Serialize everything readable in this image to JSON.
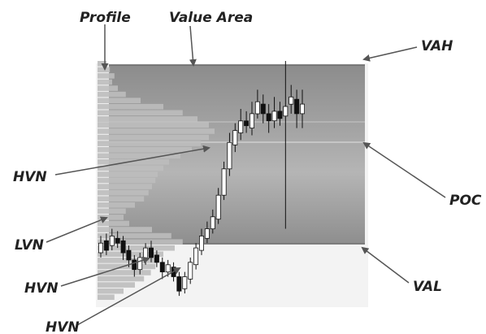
{
  "labels": {
    "profile": "Profile",
    "value_area": "Value Area",
    "vah": "VAH",
    "poc": "POC",
    "val": "VAL",
    "hvn_upper": "HVN",
    "lvn": "LVN",
    "hvn_middle": "HVN",
    "hvn_lower": "HVN"
  },
  "colors": {
    "value_area_fill": "#8a8a8a",
    "profile_bar": "#bdbdbd",
    "candle_bull": "#ffffff",
    "candle_bear": "#111111",
    "arrow": "#555555",
    "label_text": "#222222"
  },
  "profile_shading": [
    0.05,
    0.08,
    0.12,
    0.1,
    0.15,
    0.22,
    0.35,
    0.55,
    0.72,
    0.85,
    0.95,
    1.0,
    0.95,
    0.88,
    0.8,
    0.7,
    0.6,
    0.55,
    0.5,
    0.48,
    0.45,
    0.42,
    0.38,
    0.3,
    0.22,
    0.2,
    0.25,
    0.45,
    0.62,
    0.72,
    0.65,
    0.55,
    0.5,
    0.48,
    0.44,
    0.38,
    0.3,
    0.2,
    0.12
  ],
  "candle_series": [
    {
      "open": 0.2,
      "close": 0.24,
      "high": 0.27,
      "low": 0.18
    },
    {
      "open": 0.25,
      "close": 0.21,
      "high": 0.28,
      "low": 0.19
    },
    {
      "open": 0.23,
      "close": 0.27,
      "high": 0.3,
      "low": 0.21
    },
    {
      "open": 0.26,
      "close": 0.24,
      "high": 0.29,
      "low": 0.22
    },
    {
      "open": 0.25,
      "close": 0.2,
      "high": 0.27,
      "low": 0.17
    },
    {
      "open": 0.21,
      "close": 0.17,
      "high": 0.23,
      "low": 0.14
    },
    {
      "open": 0.17,
      "close": 0.13,
      "high": 0.19,
      "low": 0.1
    },
    {
      "open": 0.13,
      "close": 0.18,
      "high": 0.2,
      "low": 0.11
    },
    {
      "open": 0.17,
      "close": 0.22,
      "high": 0.24,
      "low": 0.15
    },
    {
      "open": 0.22,
      "close": 0.18,
      "high": 0.25,
      "low": 0.16
    },
    {
      "open": 0.19,
      "close": 0.16,
      "high": 0.21,
      "low": 0.14
    },
    {
      "open": 0.16,
      "close": 0.12,
      "high": 0.18,
      "low": 0.09
    },
    {
      "open": 0.12,
      "close": 0.15,
      "high": 0.17,
      "low": 0.1
    },
    {
      "open": 0.14,
      "close": 0.1,
      "high": 0.16,
      "low": 0.08
    },
    {
      "open": 0.1,
      "close": 0.04,
      "high": 0.12,
      "low": 0.02
    },
    {
      "open": 0.05,
      "close": 0.1,
      "high": 0.12,
      "low": 0.03
    },
    {
      "open": 0.09,
      "close": 0.16,
      "high": 0.18,
      "low": 0.07
    },
    {
      "open": 0.15,
      "close": 0.22,
      "high": 0.24,
      "low": 0.13
    },
    {
      "open": 0.21,
      "close": 0.27,
      "high": 0.3,
      "low": 0.19
    },
    {
      "open": 0.26,
      "close": 0.3,
      "high": 0.33,
      "low": 0.24
    },
    {
      "open": 0.3,
      "close": 0.35,
      "high": 0.38,
      "low": 0.28
    },
    {
      "open": 0.34,
      "close": 0.44,
      "high": 0.47,
      "low": 0.32
    },
    {
      "open": 0.44,
      "close": 0.55,
      "high": 0.58,
      "low": 0.42
    },
    {
      "open": 0.55,
      "close": 0.66,
      "high": 0.7,
      "low": 0.52
    },
    {
      "open": 0.65,
      "close": 0.71,
      "high": 0.74,
      "low": 0.62
    },
    {
      "open": 0.7,
      "close": 0.75,
      "high": 0.8,
      "low": 0.67
    },
    {
      "open": 0.75,
      "close": 0.73,
      "high": 0.79,
      "low": 0.7
    },
    {
      "open": 0.72,
      "close": 0.78,
      "high": 0.83,
      "low": 0.69
    },
    {
      "open": 0.78,
      "close": 0.83,
      "high": 0.88,
      "low": 0.76
    },
    {
      "open": 0.82,
      "close": 0.78,
      "high": 0.86,
      "low": 0.74
    },
    {
      "open": 0.78,
      "close": 0.75,
      "high": 0.82,
      "low": 0.7
    },
    {
      "open": 0.75,
      "close": 0.79,
      "high": 0.85,
      "low": 0.72
    },
    {
      "open": 0.79,
      "close": 0.76,
      "high": 0.83,
      "low": 0.73
    },
    {
      "open": 0.77,
      "close": 0.81,
      "high": 1.0,
      "low": 0.3
    },
    {
      "open": 0.82,
      "close": 0.85,
      "high": 0.9,
      "low": 0.78
    },
    {
      "open": 0.84,
      "close": 0.78,
      "high": 0.88,
      "low": 0.72
    },
    {
      "open": 0.78,
      "close": 0.82,
      "high": 0.88,
      "low": 0.72
    }
  ]
}
